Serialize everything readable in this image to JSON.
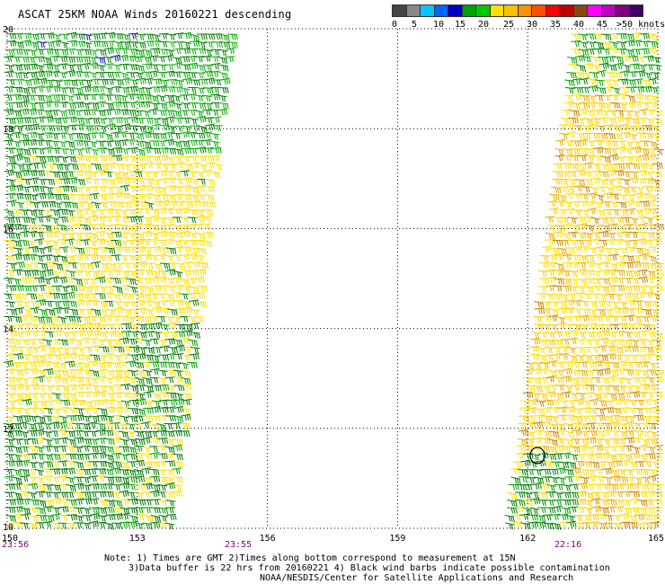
{
  "title": "ASCAT 25KM NOAA Winds 20160221 descending",
  "legend": {
    "labels": [
      "0",
      "5",
      "10",
      "15",
      "20",
      "25",
      "30",
      "35",
      "40",
      "45",
      ">50 knots"
    ],
    "colors": [
      "#444444",
      "#888888",
      "#00c8ff",
      "#0064ff",
      "#0000c8",
      "#00a000",
      "#00c800",
      "#ffe000",
      "#ffc000",
      "#ff9000",
      "#ff5000",
      "#ff0000",
      "#c00000",
      "#8b4513",
      "#ff00ff",
      "#c000c0",
      "#800080",
      "#400060"
    ]
  },
  "axes": {
    "lat_labels": [
      "20",
      "18",
      "16",
      "14",
      "12",
      "10"
    ],
    "lon_labels": [
      "150",
      "153",
      "156",
      "159",
      "162",
      "165"
    ],
    "lat_range": [
      10,
      20
    ],
    "lon_range": [
      150,
      165
    ],
    "grid": true
  },
  "pass_times": [
    "23:56",
    "23:55",
    "22:16"
  ],
  "notes": [
    "Note: 1) Times are GMT 2)Times along bottom correspond to measurement at 15N",
    "3)Data buffer is 22 hrs from 20160221 4) Black wind barbs indicate possible contamination",
    "NOAA/NESDIS/Center for Satellite Applications and Research"
  ],
  "swaths": [
    {
      "name": "west-swath",
      "time": "23:56",
      "lon_range": [
        150,
        155.3
      ],
      "lat_range": [
        10,
        20
      ],
      "dominant_speed_colors": [
        "#008000",
        "#00a000",
        "#ffe000",
        "#ffd000",
        "#0000c8"
      ]
    },
    {
      "name": "east-swath",
      "time": "22:16",
      "lon_range": [
        161.3,
        165
      ],
      "lat_range": [
        10,
        20
      ],
      "dominant_speed_colors": [
        "#ffe000",
        "#ffc000",
        "#e0a000",
        "#00a000",
        "#008000"
      ]
    }
  ]
}
